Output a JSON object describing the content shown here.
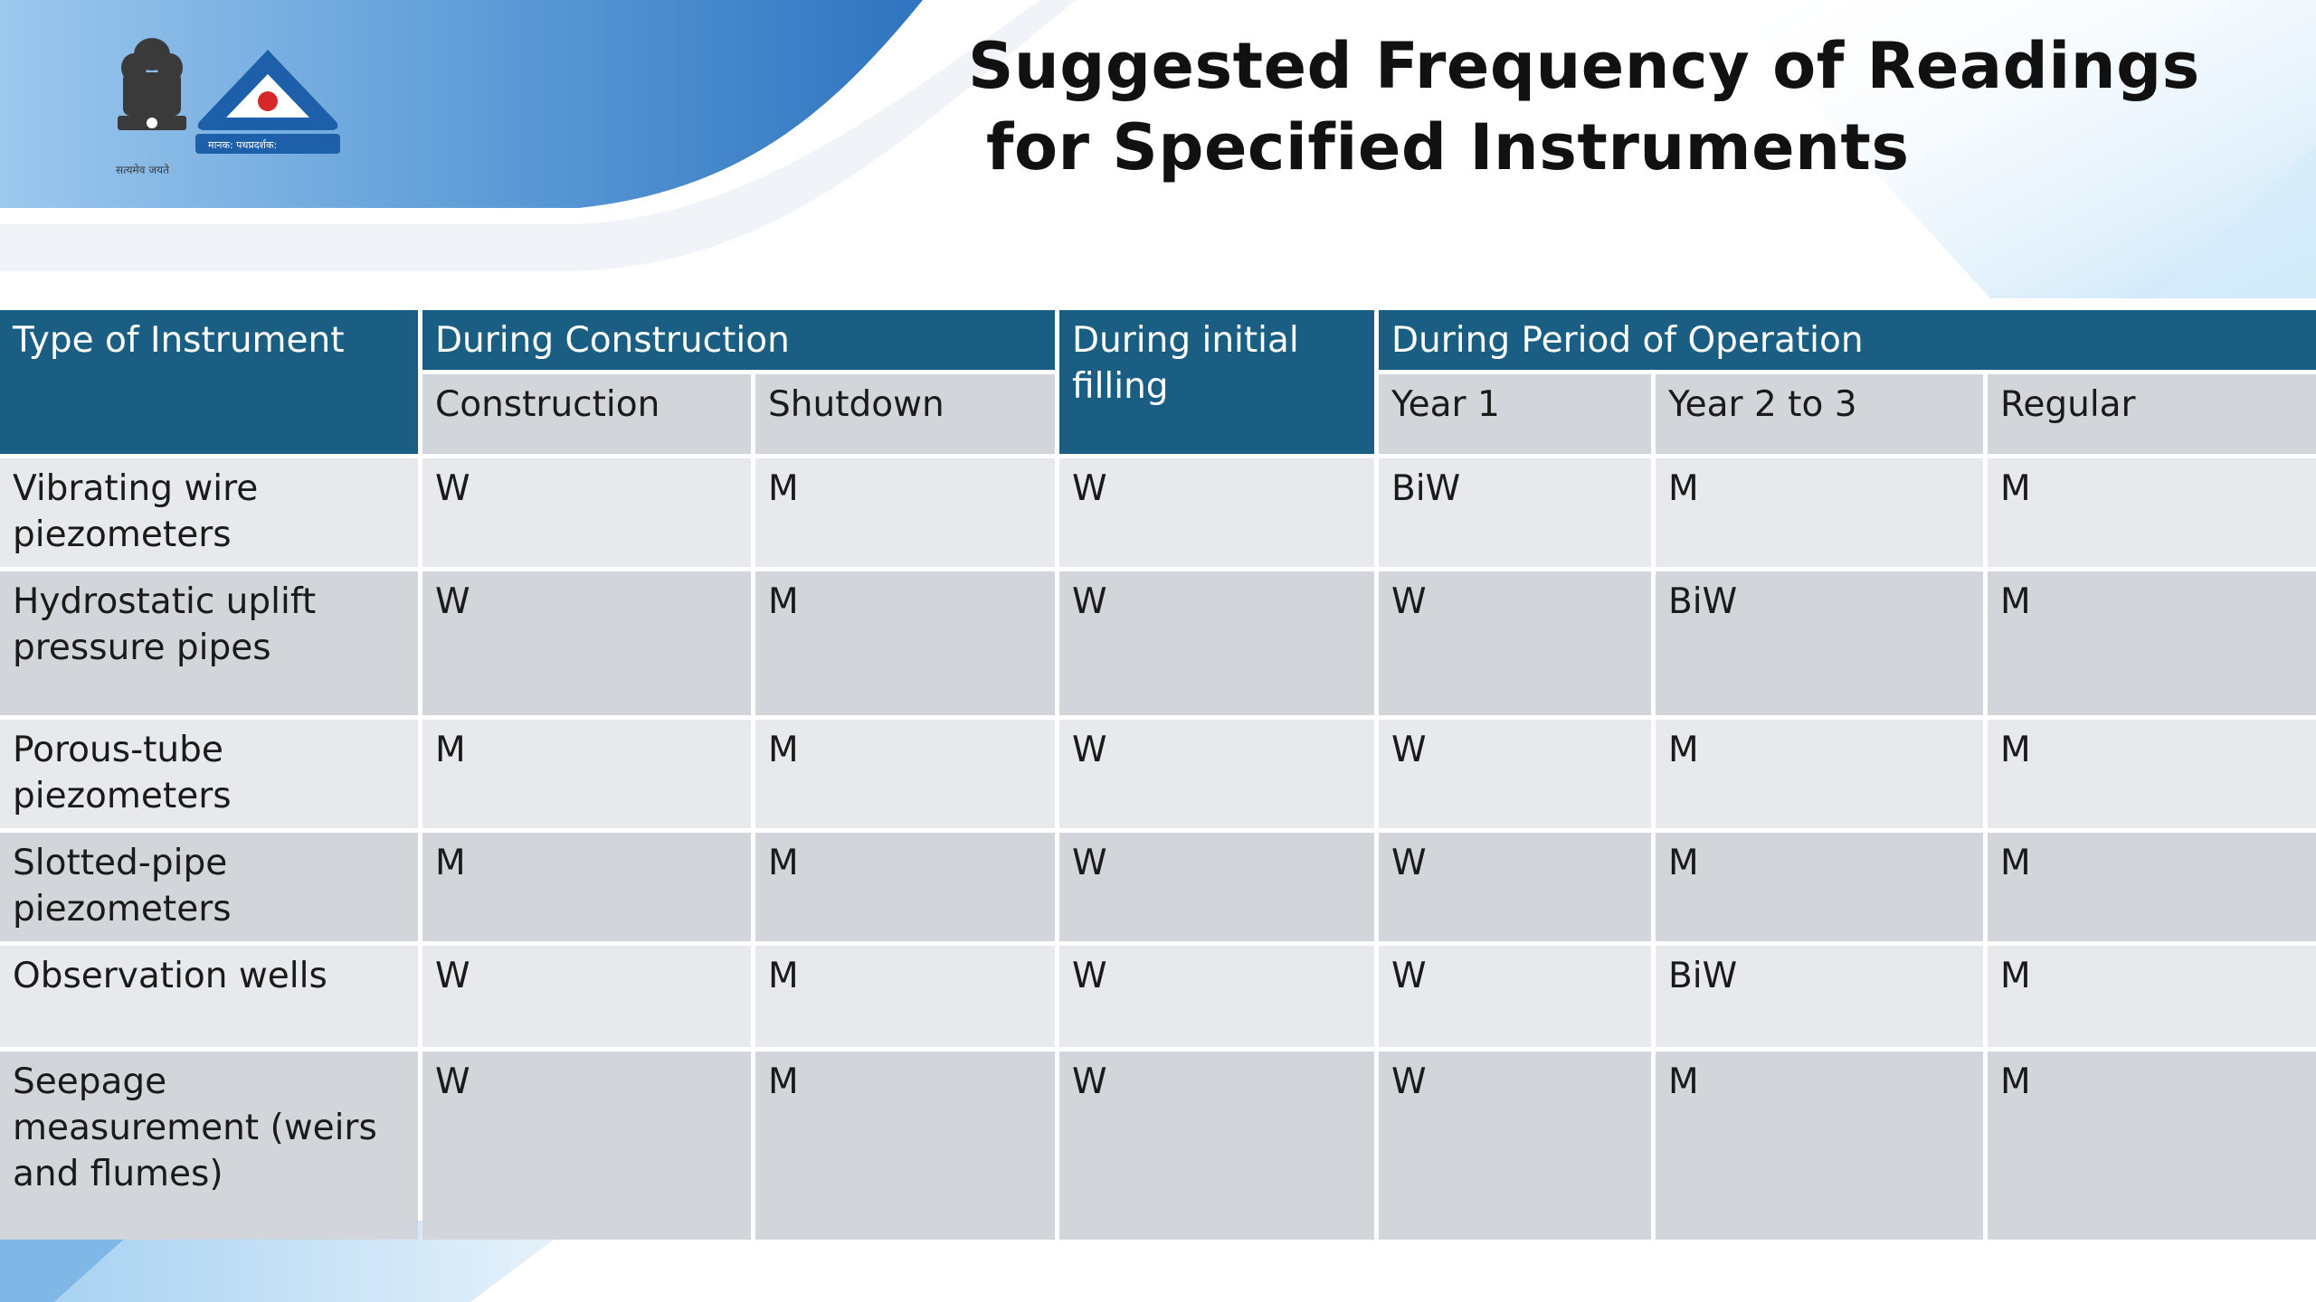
{
  "title": {
    "line1": "Suggested Frequency of Readings",
    "line2": "for Specified Instruments"
  },
  "colors": {
    "header_blue": "#1a5f83",
    "row_light": "#e7e9ec",
    "row_dark": "#d2d6da",
    "accent_sky": "#4a90d0"
  },
  "logos": {
    "emblem_icon": "national-emblem-icon",
    "emblem_text": "सत्यमेव जयते",
    "bis_icon": "bis-triangle-logo",
    "bis_text": "मानक: पथप्रदर्शक:"
  },
  "table": {
    "headers": {
      "instrument": "Type of Instrument",
      "construction_group": "During Construction",
      "initial_filling": "During initial filling",
      "operation_group": "During Period of Operation",
      "sub": [
        "Construction",
        "Shutdown",
        "Year 1",
        "Year 2 to 3",
        "Regular"
      ]
    },
    "rows": [
      {
        "name": "Vibrating wire piezometers",
        "values": [
          "W",
          "M",
          "W",
          "BiW",
          "M",
          "M"
        ]
      },
      {
        "name": "Hydrostatic uplift pressure  pipes",
        "values": [
          "W",
          "M",
          "W",
          "W",
          "BiW",
          "M"
        ]
      },
      {
        "name": "Porous-tube piezometers",
        "values": [
          "M",
          "M",
          "W",
          "W",
          "M",
          "M"
        ]
      },
      {
        "name": "Slotted-pipe piezometers",
        "values": [
          "M",
          "M",
          "W",
          "W",
          "M",
          "M"
        ]
      },
      {
        "name": "Observation wells",
        "values": [
          "W",
          "M",
          "W",
          "W",
          "BiW",
          "M"
        ]
      },
      {
        "name": "Seepage measurement (weirs and flumes)",
        "values": [
          "W",
          "M",
          "W",
          "W",
          "M",
          "M"
        ]
      }
    ]
  }
}
